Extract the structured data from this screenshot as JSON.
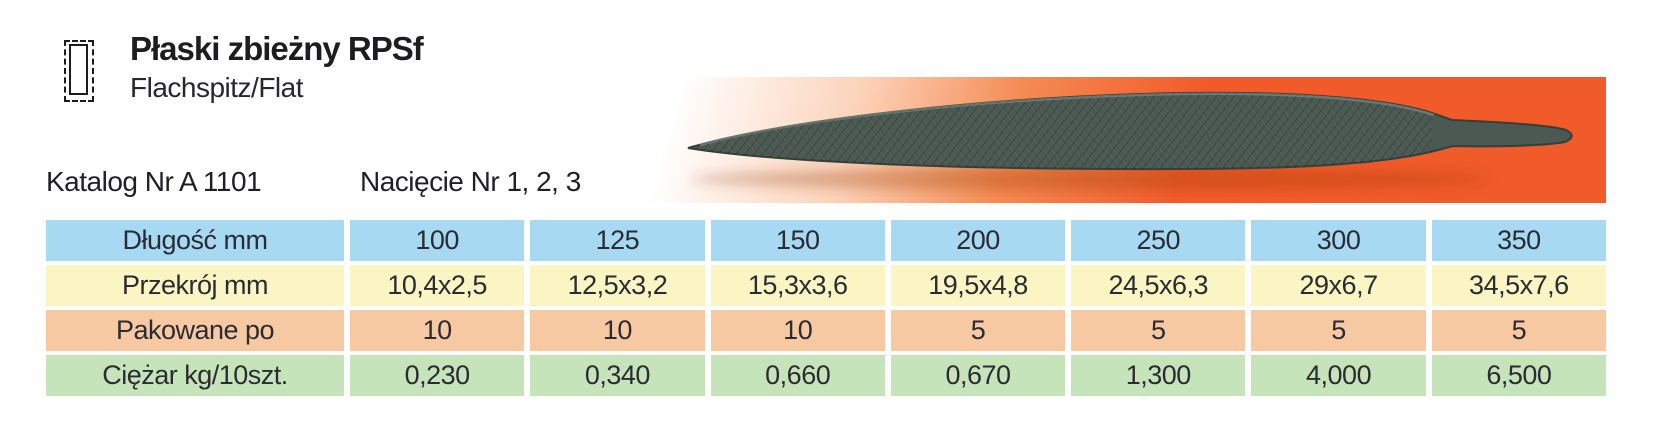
{
  "header": {
    "title": "Płaski zbieżny RPSf",
    "subtitle": "Flachspitz/Flat",
    "icon": "flat-cross-section-icon"
  },
  "catalog": {
    "number": "Katalog Nr A 1101",
    "cut": "Nacięcie Nr 1, 2, 3"
  },
  "photo": {
    "subject": "flat tapered hand file, dark steel, pointed tip left, tang right",
    "background_accent": "#f15a29"
  },
  "colors": {
    "row_blue": "#a7daf2",
    "row_yellow": "#fbf4c3",
    "row_salmon": "#f7c9a3",
    "row_green": "#c6e4ba",
    "file_body": "#4c5952"
  },
  "table": {
    "rows": [
      {
        "key": "dlugosc-mm",
        "bg": "#a7daf2",
        "label": "Długość mm",
        "values": [
          "100",
          "125",
          "150",
          "200",
          "250",
          "300",
          "350"
        ]
      },
      {
        "key": "przekroj-mm",
        "bg": "#fbf4c3",
        "label": "Przekrój mm",
        "values": [
          "10,4x2,5",
          "12,5x3,2",
          "15,3x3,6",
          "19,5x4,8",
          "24,5x6,3",
          "29x6,7",
          "34,5x7,6"
        ]
      },
      {
        "key": "pakowane-po",
        "bg": "#f7c9a3",
        "label": "Pakowane po",
        "values": [
          "10",
          "10",
          "10",
          "5",
          "5",
          "5",
          "5"
        ]
      },
      {
        "key": "ciezar-kg-10szt",
        "bg": "#c6e4ba",
        "label": "Ciężar kg/10szt.",
        "values": [
          "0,230",
          "0,340",
          "0,660",
          "0,670",
          "1,300",
          "4,000",
          "6,500"
        ]
      }
    ]
  }
}
